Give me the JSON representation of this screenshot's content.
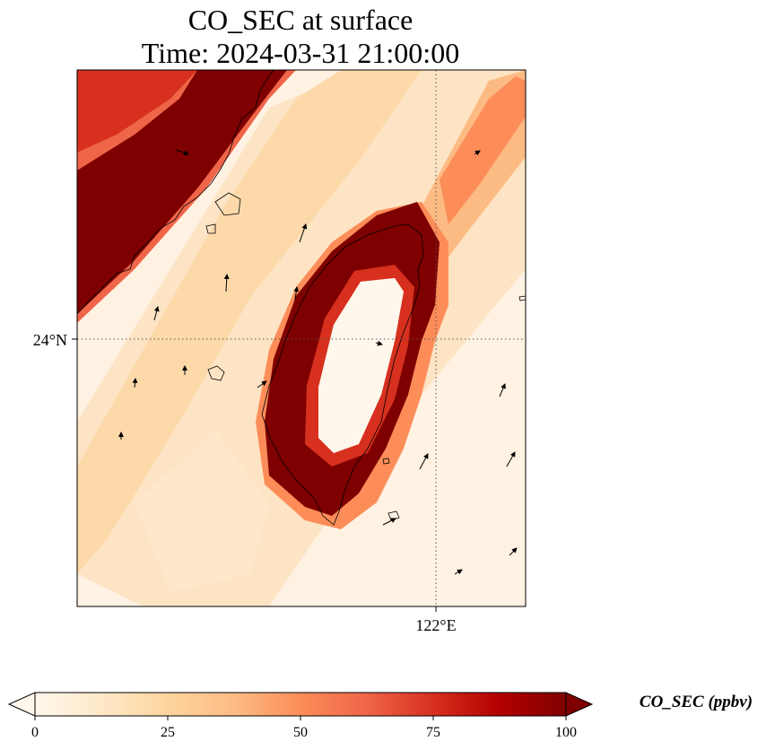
{
  "title": {
    "line1": "CO_SEC at surface",
    "line2": "Time: 2024-03-31 21:00:00"
  },
  "map": {
    "lat_label": "24°N",
    "lon_label": "122°E",
    "gridlines": true,
    "extent_lon": [
      119.5,
      123.0
    ],
    "extent_lat": [
      21.5,
      26.0
    ],
    "gridline_lon": 122.0,
    "gridline_lat": 24.0,
    "wind_vectors": "shown",
    "coastline": "Taiwan and Fujian coast"
  },
  "colorbar": {
    "label": "CO_SEC (ppbv)",
    "ticks": [
      "0",
      "25",
      "50",
      "75",
      "100"
    ],
    "range": [
      0,
      100
    ],
    "extend": "both",
    "colormap": "OrRd",
    "colors": [
      "#fff7ec",
      "#fee8c8",
      "#fdd49e",
      "#fdbb84",
      "#fc8d59",
      "#ef6548",
      "#d7301f",
      "#b30000",
      "#7f0000"
    ]
  }
}
